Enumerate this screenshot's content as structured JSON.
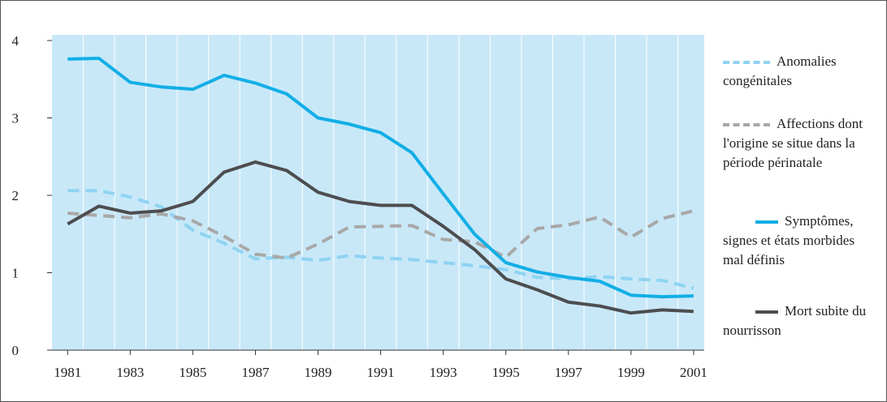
{
  "chart_data": {
    "type": "line",
    "x": [
      1981,
      1982,
      1983,
      1984,
      1985,
      1986,
      1987,
      1988,
      1989,
      1990,
      1991,
      1992,
      1993,
      1994,
      1995,
      1996,
      1997,
      1998,
      1999,
      2000,
      2001
    ],
    "series": [
      {
        "name": "Anomalies congénitales",
        "color": "#8fd3f2",
        "dashed": true,
        "values": [
          2.06,
          2.06,
          1.98,
          1.85,
          1.55,
          1.38,
          1.18,
          1.2,
          1.16,
          1.22,
          1.19,
          1.17,
          1.13,
          1.09,
          1.04,
          0.94,
          0.92,
          0.95,
          0.92,
          0.9,
          0.8
        ]
      },
      {
        "name": "Affections dont l'origine se situe dans la période périnatale",
        "color": "#a8a8a8",
        "dashed": true,
        "values": [
          1.77,
          1.74,
          1.71,
          1.76,
          1.67,
          1.47,
          1.24,
          1.19,
          1.37,
          1.59,
          1.6,
          1.61,
          1.43,
          1.4,
          1.2,
          1.57,
          1.62,
          1.72,
          1.46,
          1.7,
          1.8
        ]
      },
      {
        "name": "Symptômes, signes et états morbides mal définis",
        "color": "#12aee6",
        "dashed": false,
        "values": [
          3.76,
          3.77,
          3.46,
          3.4,
          3.37,
          3.55,
          3.45,
          3.31,
          3.0,
          2.92,
          2.81,
          2.55,
          2.02,
          1.5,
          1.13,
          1.01,
          0.94,
          0.89,
          0.71,
          0.69,
          0.7
        ]
      },
      {
        "name": "Mort subite du nourrisson",
        "color": "#4d4d4f",
        "dashed": false,
        "values": [
          1.63,
          1.86,
          1.77,
          1.8,
          1.92,
          2.3,
          2.43,
          2.32,
          2.04,
          1.92,
          1.87,
          1.87,
          1.6,
          1.3,
          0.92,
          0.78,
          0.62,
          0.57,
          0.48,
          0.52,
          0.5
        ]
      }
    ],
    "xlim": [
      1980.5,
      2001.34
    ],
    "xticks": [
      1981,
      1983,
      1985,
      1987,
      1989,
      1991,
      1993,
      1995,
      1997,
      1999,
      2001
    ],
    "ylim": [
      0,
      4
    ],
    "yticks": [
      0,
      1,
      2,
      3,
      4
    ],
    "background": "#c8e8f8",
    "legend": "right"
  }
}
